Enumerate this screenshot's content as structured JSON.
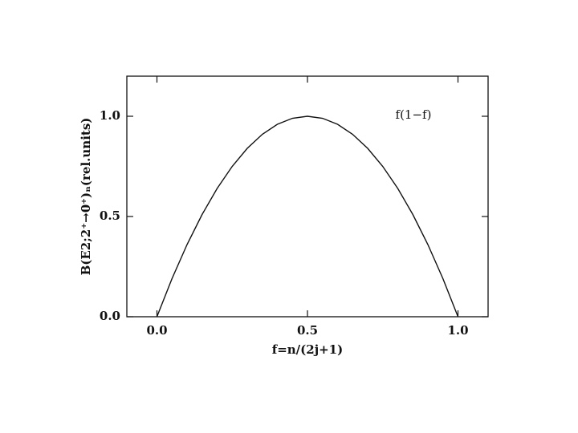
{
  "chart_data": {
    "type": "line",
    "x_label": "f=n/(2j+1)",
    "y_label": "B(E2;2⁺→0⁺)ₙ(rel.units)",
    "annotation": "f(1−f)",
    "x": [
      0,
      0.05,
      0.1,
      0.15,
      0.2,
      0.25,
      0.3,
      0.35,
      0.4,
      0.45,
      0.5,
      0.55,
      0.6,
      0.65,
      0.7,
      0.75,
      0.8,
      0.85,
      0.9,
      0.95,
      1.0
    ],
    "values": [
      0,
      0.19,
      0.36,
      0.51,
      0.64,
      0.75,
      0.84,
      0.91,
      0.96,
      0.99,
      1.0,
      0.99,
      0.96,
      0.91,
      0.84,
      0.75,
      0.64,
      0.51,
      0.36,
      0.19,
      0
    ],
    "color": "#111111",
    "xlim": [
      -0.1,
      1.1
    ],
    "ylim": [
      0,
      1.2
    ],
    "xticks": [
      {
        "value": 0,
        "label": "0.0"
      },
      {
        "value": 0.5,
        "label": "0.5"
      },
      {
        "value": 1,
        "label": "1.0"
      }
    ],
    "yticks": [
      {
        "value": 0,
        "label": "0.0"
      },
      {
        "value": 0.5,
        "label": "0.5"
      },
      {
        "value": 1,
        "label": "1.0"
      }
    ]
  }
}
